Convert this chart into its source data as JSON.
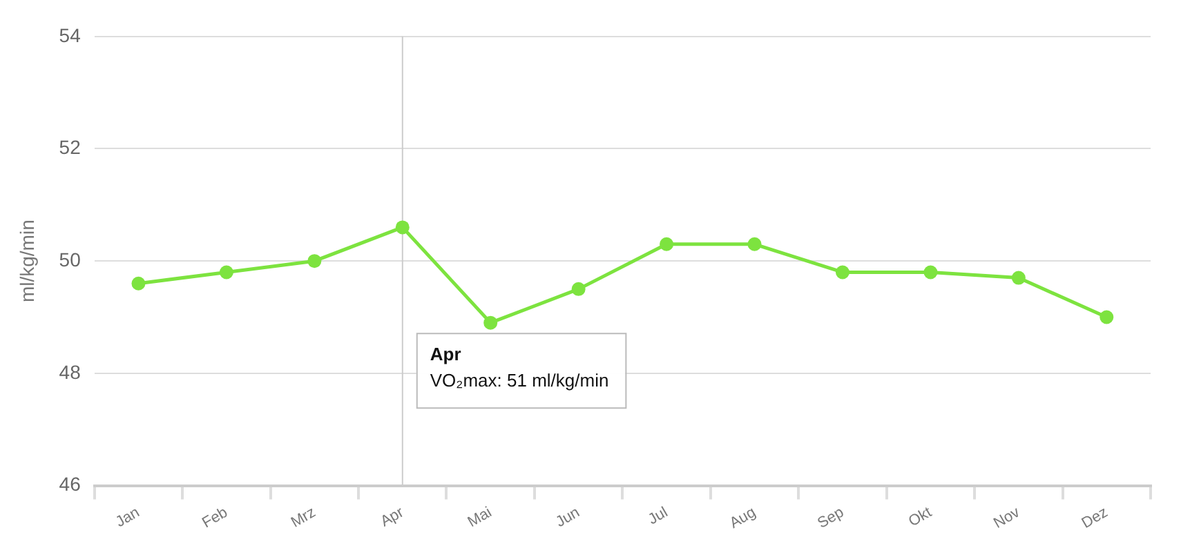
{
  "chart_data": {
    "type": "line",
    "ylabel": "ml/kg/min",
    "categories": [
      "Jan",
      "Feb",
      "Mrz",
      "Apr",
      "Mai",
      "Jun",
      "Jul",
      "Aug",
      "Sep",
      "Okt",
      "Nov",
      "Dez"
    ],
    "series": [
      {
        "color": "#7de33f",
        "values": [
          49.6,
          49.8,
          50.0,
          50.6,
          48.9,
          49.5,
          50.3,
          50.3,
          49.8,
          49.8,
          49.7,
          49.0
        ]
      }
    ],
    "ylim": [
      46,
      54
    ],
    "yticks": [
      46,
      48,
      50,
      52,
      54
    ],
    "grid": "y",
    "legend": false,
    "marker": "circle",
    "line_style": "solid",
    "ref_lines": [
      {
        "axis": "x",
        "value": "Apr",
        "color": "#cccccc"
      }
    ],
    "annotations": [
      "Apr\nVO₂max: 51 ml/kg/min"
    ]
  }
}
